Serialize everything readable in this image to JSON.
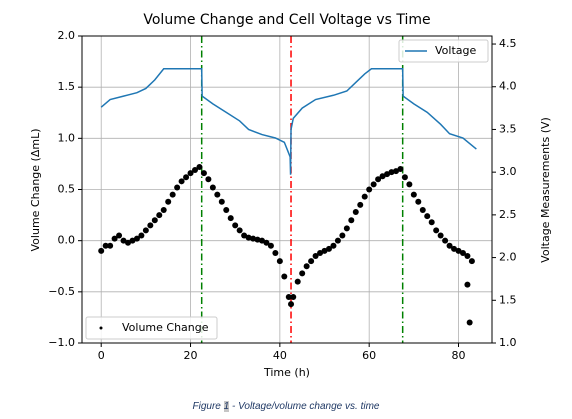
{
  "chart_data": {
    "type": "line",
    "title": "Volume Change and Cell Voltage vs Time",
    "xlabel": "Time (h)",
    "ylabel": "Volume Change (ΔmL)",
    "y2label": "Voltage Measurements (V)",
    "xlim": [
      -4.3,
      87.5
    ],
    "xticks": [
      0,
      20,
      40,
      60,
      80
    ],
    "ylim": [
      -1.0,
      2.0
    ],
    "yticks": [
      {
        "value": -1.0,
        "label": "−1.0"
      },
      {
        "value": -0.5,
        "label": "−0.5"
      },
      {
        "value": 0.0,
        "label": "0.0"
      },
      0.5,
      {
        "value": 1.0,
        "label": "1.0"
      },
      1.5,
      {
        "value": 2.0,
        "label": "2.0"
      }
    ],
    "y2lim": [
      1.0,
      4.594
    ],
    "y2ticks": [
      {
        "value": 1.0,
        "label": "1.0"
      },
      1.5,
      {
        "value": 2.0,
        "label": "2.0"
      },
      2.5,
      {
        "value": 3.0,
        "label": "3.0"
      },
      3.5,
      {
        "value": 4.0,
        "label": "4.0"
      },
      4.5
    ],
    "grid": true,
    "vlines": [
      {
        "x": 22.5,
        "color": "green"
      },
      {
        "x": 42.5,
        "color": "red"
      },
      {
        "x": 67.5,
        "color": "green"
      }
    ],
    "series": [
      {
        "name": "Volume Change",
        "type": "scatter",
        "color": "#000000",
        "axis": "y",
        "legend": "lower left",
        "x": [
          0,
          1,
          2,
          3,
          4,
          5,
          6,
          7,
          8,
          9,
          10,
          11,
          12,
          13,
          14,
          15,
          16,
          17,
          18,
          19,
          20,
          21,
          22,
          23,
          24,
          25,
          26,
          27,
          28,
          29,
          30,
          31,
          32,
          33,
          34,
          35,
          36,
          37,
          38,
          39,
          40,
          41,
          42,
          42.5,
          43,
          44,
          45,
          46,
          47,
          48,
          49,
          50,
          51,
          52,
          53,
          54,
          55,
          56,
          57,
          58,
          59,
          60,
          61,
          62,
          63,
          64,
          65,
          66,
          67,
          68,
          69,
          70,
          71,
          72,
          73,
          74,
          75,
          76,
          77,
          78,
          79,
          80,
          81,
          82,
          83,
          82,
          82.5
        ],
        "values": [
          -0.1,
          -0.05,
          -0.05,
          0.02,
          0.05,
          0.0,
          -0.02,
          0.0,
          0.02,
          0.05,
          0.1,
          0.15,
          0.2,
          0.25,
          0.3,
          0.38,
          0.45,
          0.52,
          0.58,
          0.62,
          0.66,
          0.69,
          0.72,
          0.66,
          0.6,
          0.52,
          0.45,
          0.38,
          0.3,
          0.22,
          0.15,
          0.1,
          0.05,
          0.03,
          0.02,
          0.01,
          0.0,
          -0.02,
          -0.05,
          -0.12,
          -0.2,
          -0.35,
          -0.55,
          -0.62,
          -0.55,
          -0.4,
          -0.32,
          -0.25,
          -0.2,
          -0.15,
          -0.12,
          -0.1,
          -0.08,
          -0.05,
          0.0,
          0.05,
          0.12,
          0.2,
          0.28,
          0.35,
          0.43,
          0.5,
          0.55,
          0.6,
          0.63,
          0.65,
          0.67,
          0.68,
          0.7,
          0.62,
          0.55,
          0.45,
          0.38,
          0.3,
          0.24,
          0.18,
          0.1,
          0.05,
          0.0,
          -0.05,
          -0.08,
          -0.1,
          -0.12,
          -0.15,
          -0.2,
          -0.43,
          -0.8
        ]
      },
      {
        "name": "Voltage",
        "type": "line",
        "color": "#1f77b4",
        "axis": "y2",
        "legend": "upper right",
        "x": [
          0,
          2,
          5,
          8,
          10,
          12,
          14,
          22.5,
          22.6,
          25,
          28,
          31,
          33,
          36,
          39,
          41,
          42.3,
          42.4,
          42.5,
          43,
          45,
          48,
          52,
          55,
          57,
          59,
          60.5,
          67.5,
          67.6,
          70,
          73,
          76,
          78,
          81,
          84
        ],
        "values": [
          3.76,
          3.85,
          3.89,
          3.93,
          3.98,
          4.08,
          4.21,
          4.21,
          3.89,
          3.8,
          3.7,
          3.6,
          3.5,
          3.44,
          3.4,
          3.35,
          3.18,
          2.97,
          3.5,
          3.63,
          3.75,
          3.85,
          3.9,
          3.95,
          4.05,
          4.15,
          4.21,
          4.21,
          3.89,
          3.8,
          3.7,
          3.56,
          3.45,
          3.4,
          3.27
        ]
      }
    ]
  },
  "caption": {
    "prefix": "Figure ",
    "number": "1",
    "text": " - Voltage/volume change vs. time"
  }
}
